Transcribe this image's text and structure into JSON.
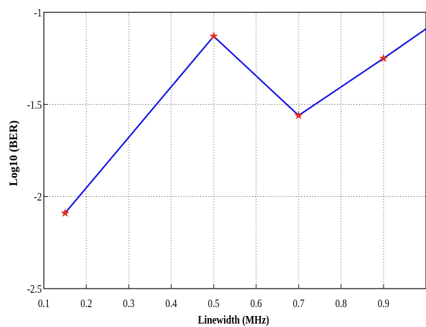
{
  "chart_data": {
    "type": "line",
    "xlabel": "Linewidth (MHz)",
    "ylabel": "Log10 (BER)",
    "xlim": [
      0.1,
      1.0
    ],
    "ylim": [
      -2.5,
      -1.0
    ],
    "xticks": [
      0.1,
      0.2,
      0.3,
      0.4,
      0.5,
      0.6,
      0.7,
      0.8,
      0.9
    ],
    "xtick_labels": [
      "0.1",
      "0.2",
      "0.3",
      "0.4",
      "0.5",
      "0.6",
      "0.7",
      "0.8",
      "0.9"
    ],
    "yticks": [
      -2.5,
      -2.0,
      -1.5,
      -1.0
    ],
    "ytick_labels": [
      "-2.5",
      "-2",
      "-1.5",
      "-1"
    ],
    "grid": true,
    "series": [
      {
        "line_color": "#1414e6",
        "marker_color": "#e0301e",
        "marker": "star",
        "points": [
          {
            "x": 0.15,
            "y": -2.09
          },
          {
            "x": 0.5,
            "y": -1.13
          },
          {
            "x": 0.7,
            "y": -1.56
          },
          {
            "x": 0.9,
            "y": -1.25
          },
          {
            "x": 1.0,
            "y": -1.09
          }
        ],
        "marker_points": [
          {
            "x": 0.15,
            "y": -2.09
          },
          {
            "x": 0.5,
            "y": -1.13
          },
          {
            "x": 0.7,
            "y": -1.56
          },
          {
            "x": 0.9,
            "y": -1.25
          }
        ]
      }
    ]
  }
}
